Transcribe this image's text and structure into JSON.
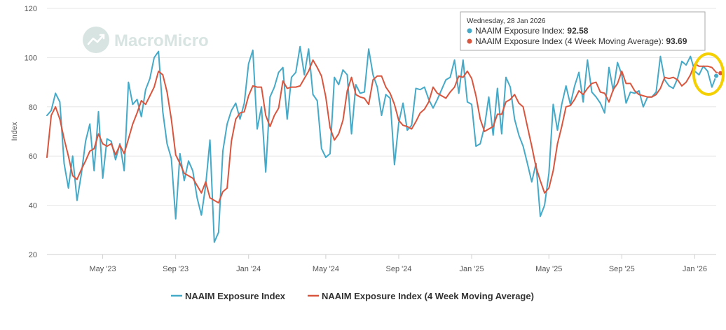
{
  "watermark": {
    "text": "MacroMicro"
  },
  "tooltip": {
    "date": "Wednesday, 28 Jan 2026",
    "rows": [
      {
        "label": "NAAIM Exposure Index:",
        "value": "92.58",
        "color": "#45a9c8"
      },
      {
        "label": "NAAIM Exposure Index (4 Week Moving Average):",
        "value": "93.69",
        "color": "#d9553d"
      }
    ]
  },
  "highlight": {
    "color": "#f5d000"
  },
  "chart_data": {
    "type": "line",
    "title": "",
    "xlabel": "",
    "ylabel": "Index",
    "ylim": [
      20,
      120
    ],
    "yticks": [
      20,
      40,
      60,
      80,
      100,
      120
    ],
    "grid": "horizontal",
    "legend_position": "bottom-center",
    "x_start": "2023-02-01",
    "x_interval": "weekly",
    "xticks": [
      {
        "label": "May '23",
        "index": 13
      },
      {
        "label": "Sep '23",
        "index": 30
      },
      {
        "label": "Jan '24",
        "index": 47
      },
      {
        "label": "May '24",
        "index": 65
      },
      {
        "label": "Sep '24",
        "index": 82
      },
      {
        "label": "Jan '25",
        "index": 99
      },
      {
        "label": "May '25",
        "index": 117
      },
      {
        "label": "Sep '25",
        "index": 134
      },
      {
        "label": "Jan '26",
        "index": 151
      }
    ],
    "series": [
      {
        "name": "NAAIM Exposure Index",
        "color": "#45a9c8",
        "values": [
          76.5,
          78.5,
          85.5,
          82.0,
          57.0,
          47.0,
          60.0,
          42.0,
          52.5,
          66.0,
          73.0,
          54.0,
          78.0,
          51.0,
          67.0,
          66.0,
          58.5,
          65.0,
          54.0,
          90.0,
          81.0,
          83.0,
          76.0,
          87.0,
          91.5,
          100.0,
          102.5,
          78.0,
          65.0,
          59.0,
          34.5,
          61.0,
          50.0,
          58.0,
          54.0,
          43.0,
          36.0,
          48.0,
          66.5,
          25.0,
          29.0,
          62.0,
          73.0,
          78.5,
          81.5,
          75.0,
          81.5,
          97.5,
          103.0,
          71.0,
          80.0,
          53.5,
          84.0,
          88.0,
          94.0,
          96.0,
          75.0,
          92.0,
          94.0,
          104.5,
          93.0,
          103.5,
          85.0,
          82.5,
          63.0,
          59.5,
          61.0,
          92.0,
          89.0,
          95.0,
          93.0,
          69.0,
          89.0,
          85.5,
          86.0,
          103.5,
          93.0,
          88.0,
          76.5,
          85.0,
          83.5,
          56.5,
          73.5,
          81.5,
          70.5,
          72.5,
          87.5,
          87.0,
          88.0,
          83.0,
          79.5,
          83.0,
          87.0,
          91.0,
          92.0,
          99.0,
          85.5,
          99.0,
          82.0,
          81.0,
          64.0,
          65.0,
          72.0,
          84.0,
          68.5,
          87.5,
          69.0,
          92.0,
          88.0,
          75.0,
          68.5,
          64.0,
          57.0,
          49.5,
          57.0,
          35.5,
          40.0,
          53.0,
          81.0,
          70.5,
          81.0,
          88.5,
          81.0,
          88.5,
          94.0,
          82.0,
          99.0,
          86.0,
          84.0,
          81.5,
          77.5,
          96.0,
          86.5,
          98.0,
          93.0,
          81.5,
          86.0,
          85.5,
          86.5,
          80.0,
          84.0,
          84.0,
          86.0,
          100.5,
          91.0,
          88.5,
          87.5,
          91.5,
          98.5,
          97.0,
          100.5,
          94.5,
          93.0,
          96.5,
          94.5,
          88.0,
          92.58
        ]
      },
      {
        "name": "NAAIM Exposure Index (4 Week Moving Average)",
        "color": "#d9553d",
        "values": [
          59.5,
          76.5,
          80.0,
          75.0,
          67.0,
          60.0,
          52.0,
          50.5,
          54.5,
          58.0,
          62.0,
          63.0,
          69.0,
          65.0,
          64.0,
          65.0,
          60.5,
          64.5,
          61.0,
          67.0,
          73.0,
          77.5,
          82.5,
          81.0,
          84.5,
          88.0,
          94.5,
          93.0,
          86.0,
          75.0,
          60.5,
          57.0,
          53.0,
          52.0,
          51.0,
          48.0,
          45.0,
          49.5,
          43.0,
          42.0,
          41.0,
          45.5,
          47.0,
          66.0,
          75.0,
          77.5,
          78.0,
          84.5,
          88.5,
          88.0,
          88.0,
          76.5,
          72.0,
          76.5,
          79.5,
          90.5,
          87.5,
          88.0,
          88.0,
          88.5,
          91.5,
          94.5,
          99.0,
          96.0,
          92.5,
          84.0,
          71.5,
          66.5,
          69.0,
          74.5,
          86.5,
          92.0,
          85.0,
          84.0,
          83.5,
          81.0,
          91.0,
          92.5,
          92.5,
          88.0,
          85.5,
          81.0,
          74.5,
          72.5,
          72.0,
          71.0,
          74.0,
          77.5,
          79.0,
          82.0,
          88.0,
          85.5,
          84.5,
          83.5,
          86.0,
          88.0,
          92.5,
          92.0,
          94.5,
          91.5,
          84.5,
          75.0,
          70.0,
          71.0,
          72.0,
          77.0,
          77.0,
          82.0,
          83.0,
          85.0,
          81.5,
          80.0,
          72.0,
          64.0,
          55.5,
          50.0,
          45.0,
          47.0,
          54.0,
          65.0,
          72.0,
          80.0,
          80.5,
          83.0,
          86.5,
          85.0,
          87.5,
          89.5,
          90.0,
          86.0,
          85.5,
          82.0,
          87.0,
          89.5,
          94.5,
          89.5,
          89.5,
          86.5,
          85.0,
          84.5,
          84.0,
          84.0,
          85.0,
          87.5,
          92.0,
          91.5,
          92.0,
          91.0,
          88.5,
          90.0,
          93.0,
          97.5,
          96.5,
          96.5,
          96.5,
          96.0,
          94.0,
          93.69
        ]
      }
    ]
  }
}
